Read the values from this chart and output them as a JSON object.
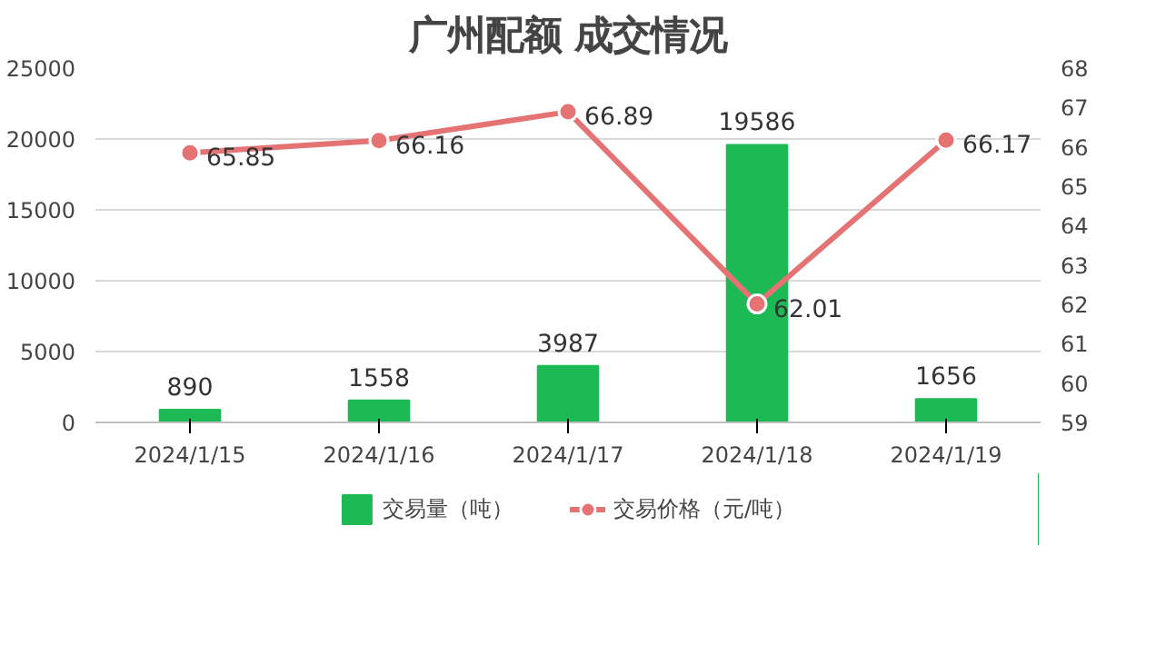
{
  "chart_data": {
    "type": "bar",
    "title": "广州配额 成交情况",
    "categories": [
      "2024/1/15",
      "2024/1/16",
      "2024/1/17",
      "2024/1/18",
      "2024/1/19"
    ],
    "series": [
      {
        "name": "交易量（吨）",
        "color": "#1db954",
        "values": [
          890,
          1558,
          3987,
          19586,
          1656
        ]
      },
      {
        "name": "交易价格（元/吨）",
        "type": "line",
        "axis": "y2",
        "color": "#e57373",
        "marker": "circle",
        "values": [
          65.85,
          66.16,
          66.89,
          62.01,
          66.17
        ]
      }
    ],
    "ylim": [
      0,
      25000
    ],
    "yticks": [
      0,
      5000,
      10000,
      15000,
      20000,
      25000
    ],
    "y2lim": [
      59,
      68
    ],
    "y2ticks": [
      59,
      60,
      61,
      62,
      63,
      64,
      65,
      66,
      67,
      68
    ],
    "grid": "y",
    "legend": "bottom",
    "data_labels": true
  }
}
